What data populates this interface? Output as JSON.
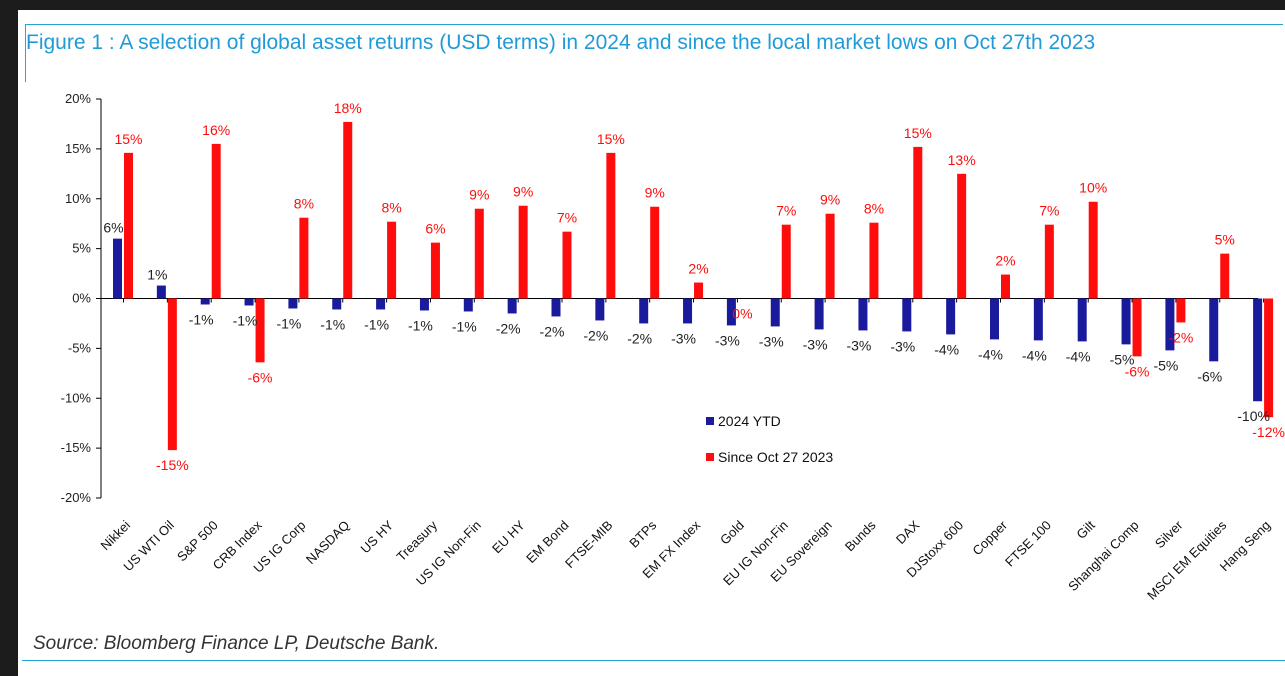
{
  "figure": {
    "title": "Figure 1 : A selection of global asset returns (USD terms) in 2024 and since the local market lows on Oct 27th 2023",
    "source": "Source: Bloomberg Finance LP, Deutsche Bank."
  },
  "chart_data": {
    "type": "bar",
    "title": "Figure 1 : A selection of global asset returns (USD terms) in 2024 and since the local market lows on Oct 27th 2023",
    "xlabel": "",
    "ylabel": "",
    "ylim": [
      -20,
      20
    ],
    "yticks": [
      "20%",
      "15%",
      "10%",
      "5%",
      "0%",
      "-5%",
      "-10%",
      "-15%",
      "-20%"
    ],
    "ytick_values": [
      20,
      15,
      10,
      5,
      0,
      -5,
      -10,
      -15,
      -20
    ],
    "grid": false,
    "legend_position": "center-right",
    "categories": [
      "Nikkei",
      "US WTI Oil",
      "S&P 500",
      "CRB Index",
      "US IG Corp",
      "NASDAQ",
      "US HY",
      "Treasury",
      "US IG Non-Fin",
      "EU HY",
      "EM Bond",
      "FTSE-MIB",
      "BTPs",
      "EM FX Index",
      "Gold",
      "EU IG Non-Fin",
      "EU Sovereign",
      "Bunds",
      "DAX",
      "DJStoxx 600",
      "Copper",
      "FTSE 100",
      "Gilt",
      "Shanghai Comp",
      "Silver",
      "MSCI EM Equities",
      "Hang Seng"
    ],
    "series": [
      {
        "name": "2024 YTD",
        "color": "#1a1a9c",
        "values": [
          6,
          1.3,
          -0.6,
          -0.7,
          -1,
          -1.1,
          -1.1,
          -1.2,
          -1.3,
          -1.5,
          -1.8,
          -2.2,
          -2.5,
          -2.5,
          -2.7,
          -2.8,
          -3.1,
          -3.2,
          -3.3,
          -3.6,
          -4.1,
          -4.2,
          -4.3,
          -4.6,
          -5.2,
          -6.3,
          -10.3
        ],
        "labels": [
          "6%",
          "1%",
          "-1%",
          "-1%",
          "-1%",
          "-1%",
          "-1%",
          "-1%",
          "-1%",
          "-2%",
          "-2%",
          "-2%",
          "-2%",
          "-3%",
          "-3%",
          "-3%",
          "-3%",
          "-3%",
          "-3%",
          "-4%",
          "-4%",
          "-4%",
          "-4%",
          "-5%",
          "-5%",
          "-6%",
          "-10%"
        ]
      },
      {
        "name": "Since Oct 27 2023",
        "color": "#ff0d0d",
        "values": [
          14.6,
          -15.2,
          15.5,
          -6.4,
          8.1,
          17.7,
          7.7,
          5.6,
          9,
          9.3,
          6.7,
          14.6,
          9.2,
          1.6,
          0,
          7.4,
          8.5,
          7.6,
          15.2,
          12.5,
          2.4,
          7.4,
          9.7,
          -5.8,
          -2.4,
          4.5,
          -11.9
        ],
        "labels": [
          "15%",
          "-15%",
          "16%",
          "-6%",
          "8%",
          "18%",
          "8%",
          "6%",
          "9%",
          "9%",
          "7%",
          "15%",
          "9%",
          "2%",
          "0%",
          "7%",
          "9%",
          "8%",
          "15%",
          "13%",
          "2%",
          "7%",
          "10%",
          "-6%",
          "-2%",
          "5%",
          "-12%"
        ]
      }
    ]
  }
}
